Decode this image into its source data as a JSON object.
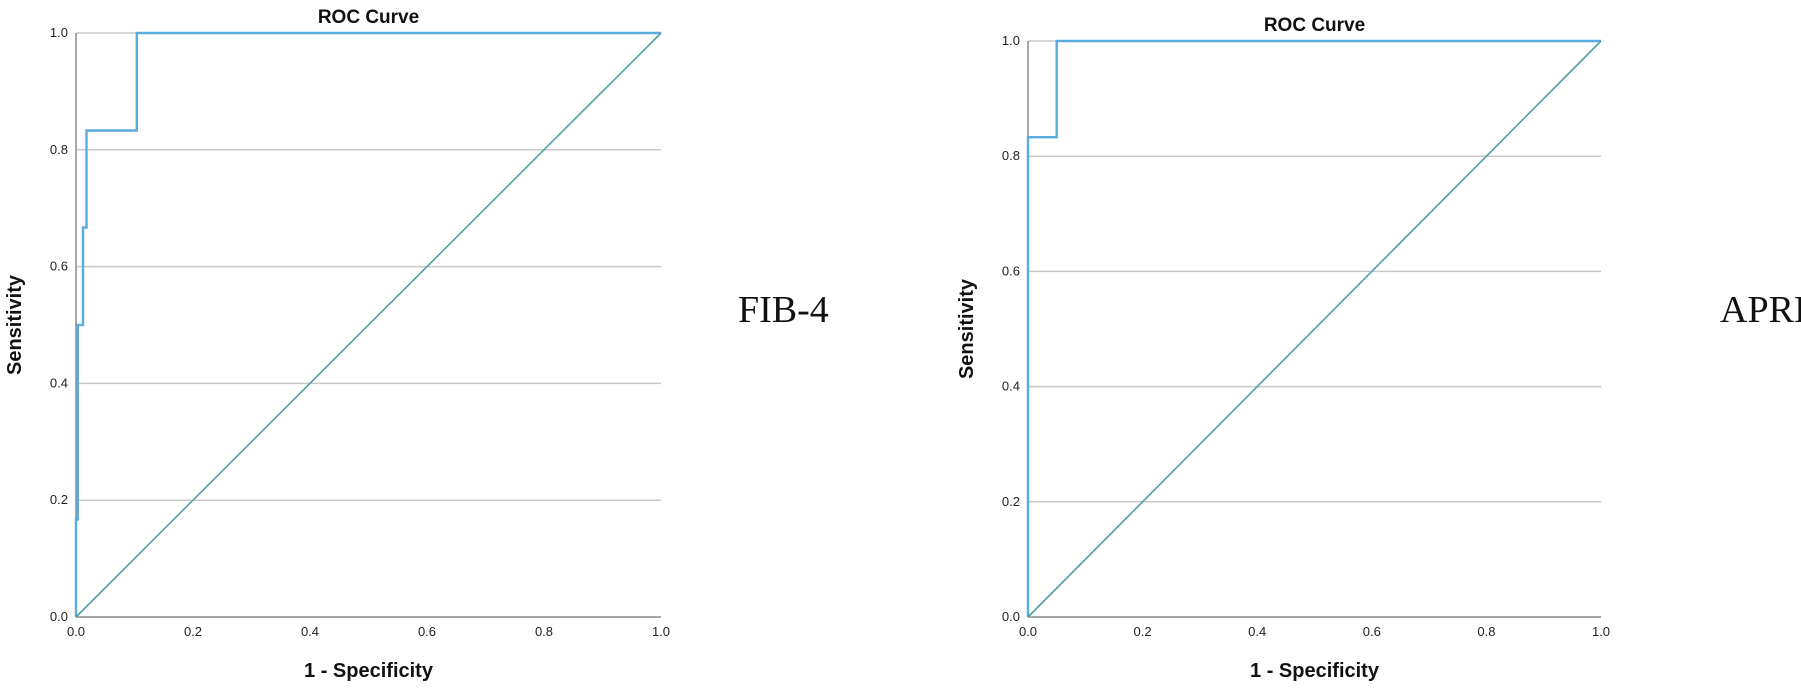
{
  "chart_data": [
    {
      "type": "line",
      "title": "ROC Curve",
      "xlabel": "1 - Specificity",
      "ylabel": "Sensitivity",
      "xlim": [
        0.0,
        1.0
      ],
      "ylim": [
        0.0,
        1.0
      ],
      "xticks": [
        "0.0",
        "0.2",
        "0.4",
        "0.6",
        "0.8",
        "1.0"
      ],
      "yticks": [
        "0.0",
        "0.2",
        "0.4",
        "0.6",
        "0.8",
        "1.0"
      ],
      "grid": "horizontal",
      "side_label": "FIB-4",
      "series": [
        {
          "x": [
            0.0,
            0.0,
            0.003,
            0.003,
            0.006,
            0.006,
            0.012,
            0.012,
            0.018,
            0.018,
            0.104,
            0.104,
            1.0
          ],
          "y": [
            0.0,
            0.167,
            0.167,
            0.5,
            0.5,
            0.5,
            0.5,
            0.667,
            0.667,
            0.833,
            0.833,
            1.0,
            1.0
          ],
          "color": "#5aace0"
        },
        {
          "x": [
            0.0,
            1.0
          ],
          "y": [
            0.0,
            1.0
          ],
          "color": "#4f9ea8"
        }
      ]
    },
    {
      "type": "line",
      "title": "ROC Curve",
      "xlabel": "1 - Specificity",
      "ylabel": "Sensitivity",
      "xlim": [
        0.0,
        1.0
      ],
      "ylim": [
        0.0,
        1.0
      ],
      "xticks": [
        "0.0",
        "0.2",
        "0.4",
        "0.6",
        "0.8",
        "1.0"
      ],
      "yticks": [
        "0.0",
        "0.2",
        "0.4",
        "0.6",
        "0.8",
        "1.0"
      ],
      "grid": "horizontal",
      "side_label": "APRI",
      "series": [
        {
          "x": [
            0.0,
            0.0,
            0.05,
            0.05,
            1.0
          ],
          "y": [
            0.0,
            0.833,
            0.833,
            1.0,
            1.0
          ],
          "color": "#5aace0"
        },
        {
          "x": [
            0.0,
            1.0
          ],
          "y": [
            0.0,
            1.0
          ],
          "color": "#4f9ea8"
        }
      ]
    }
  ]
}
